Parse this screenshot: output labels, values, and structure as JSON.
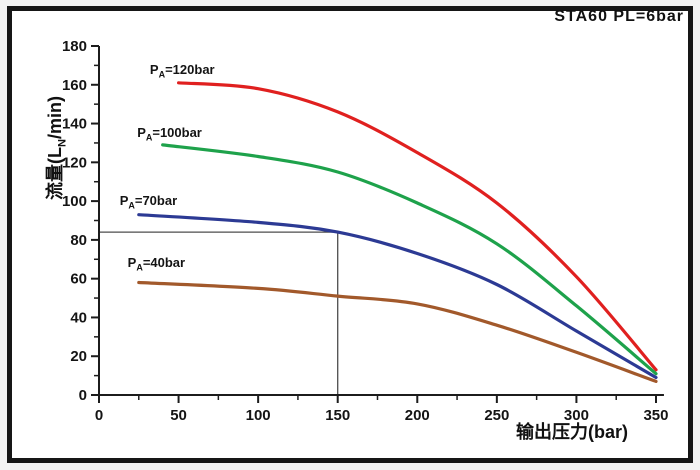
{
  "title": "STA60 PL=6bar",
  "chart_data": {
    "type": "line",
    "title": "STA60 PL=6bar",
    "xlabel": "输出压力(bar)",
    "ylabel": {
      "prefix": "流量(L",
      "sub": "N",
      "suffix": "/min)"
    },
    "xlim": [
      0,
      355
    ],
    "ylim": [
      0,
      180
    ],
    "grid": false,
    "legend_position": "inline-labels",
    "x_ticks": [
      0,
      50,
      100,
      150,
      200,
      250,
      300,
      350
    ],
    "x_minor_ticks": [
      25,
      75,
      125,
      175,
      225,
      275,
      325
    ],
    "y_ticks": [
      0,
      20,
      40,
      60,
      80,
      100,
      120,
      140,
      160,
      180
    ],
    "y_minor_ticks": [
      10,
      30,
      50,
      70,
      90,
      110,
      130,
      150,
      170
    ],
    "axis_color": "#1c1c1c",
    "crosshair": {
      "x": 150,
      "y": 84,
      "color": "#4d4d4d"
    },
    "series": [
      {
        "name": "PA=120bar",
        "label": {
          "base": "P",
          "sub": "A",
          "rest": "=120bar"
        },
        "color": "#e0201f",
        "label_xy": [
          32,
          172
        ],
        "points": [
          [
            50,
            161
          ],
          [
            100,
            158
          ],
          [
            150,
            146
          ],
          [
            200,
            125
          ],
          [
            250,
            99
          ],
          [
            300,
            61
          ],
          [
            350,
            13
          ]
        ]
      },
      {
        "name": "PA=100bar",
        "label": {
          "base": "P",
          "sub": "A",
          "rest": "=100bar"
        },
        "color": "#1ea24b",
        "label_xy": [
          24,
          139
        ],
        "points": [
          [
            40,
            129
          ],
          [
            100,
            123
          ],
          [
            150,
            115
          ],
          [
            200,
            99
          ],
          [
            250,
            78
          ],
          [
            300,
            46
          ],
          [
            350,
            11
          ]
        ]
      },
      {
        "name": "PA=70bar",
        "label": {
          "base": "P",
          "sub": "A",
          "rest": "=70bar"
        },
        "color": "#2c3a94",
        "label_xy": [
          13,
          104
        ],
        "points": [
          [
            25,
            93
          ],
          [
            100,
            89
          ],
          [
            150,
            84
          ],
          [
            200,
            73
          ],
          [
            250,
            57
          ],
          [
            300,
            33
          ],
          [
            350,
            9
          ]
        ]
      },
      {
        "name": "PA=40bar",
        "label": {
          "base": "P",
          "sub": "A",
          "rest": "=40bar"
        },
        "color": "#a2592b",
        "label_xy": [
          18,
          72
        ],
        "points": [
          [
            25,
            58
          ],
          [
            100,
            55
          ],
          [
            150,
            51
          ],
          [
            200,
            47
          ],
          [
            250,
            36
          ],
          [
            300,
            22
          ],
          [
            350,
            7
          ]
        ]
      }
    ]
  }
}
